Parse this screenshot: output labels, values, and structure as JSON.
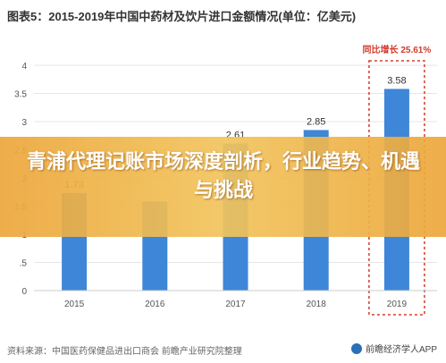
{
  "title": "图表5：2015-2019年中国中药材及饮片进口金额情况(单位：亿美元)",
  "overlay_text": "青浦代理记账市场深度剖析，行业趋势、机遇与挑战",
  "footer_source": "资料来源：中国医药保健品进出口商会 前瞻产业研究院整理",
  "brand": "前瞻经济学人APP",
  "highlight_label": "同比增长 25.61%",
  "colors": {
    "bar": "#3d86d8",
    "highlight_box": "#d33a2c",
    "grid": "#e6e6e6",
    "axis_text": "#555555"
  },
  "chart_data": {
    "type": "bar",
    "categories": [
      "2015",
      "2016",
      "2017",
      "2018",
      "2019"
    ],
    "values": [
      1.73,
      1.58,
      2.61,
      2.85,
      3.58
    ],
    "data_labels": [
      "1.73",
      "",
      "2.61",
      "2.85",
      "3.58"
    ],
    "y_ticks": [
      "0",
      ".5",
      "1",
      "1.5",
      "2",
      "2.5",
      "3",
      "3.5",
      "4"
    ],
    "ylim": [
      0,
      4
    ],
    "grid": true,
    "highlight_category": "2019"
  }
}
